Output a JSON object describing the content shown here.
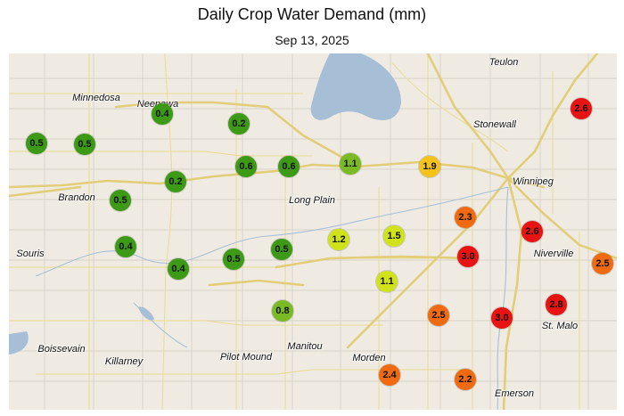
{
  "title": "Daily Crop Water Demand (mm)",
  "date": "Sep 13, 2025",
  "colors": {
    "land": "#efebe3",
    "water": "#a7bfd6",
    "road": "#eadb8f",
    "highway": "#e6cf7a",
    "boundary": "#cfc8bb",
    "low": "#3c9a16",
    "low_mid": "#7aba24",
    "mid": "#cfe21a",
    "mid_high": "#f5c21a",
    "high": "#ef6a10",
    "very_high": "#e81313"
  },
  "towns": [
    {
      "name": "Teulon"
    },
    {
      "name": "Minnedosa"
    },
    {
      "name": "Neepawa"
    },
    {
      "name": "Stonewall"
    },
    {
      "name": "Winnipeg"
    },
    {
      "name": "Brandon"
    },
    {
      "name": "Long Plain"
    },
    {
      "name": "Souris"
    },
    {
      "name": "Niverville"
    },
    {
      "name": "St. Malo"
    },
    {
      "name": "Boissevain"
    },
    {
      "name": "Killarney"
    },
    {
      "name": "Pilot Mound"
    },
    {
      "name": "Manitou"
    },
    {
      "name": "Morden"
    },
    {
      "name": "Emerson"
    }
  ],
  "stations": [
    {
      "value": "2.6",
      "level": "very_high"
    },
    {
      "value": "0.4",
      "level": "low"
    },
    {
      "value": "0.2",
      "level": "low"
    },
    {
      "value": "0.5",
      "level": "low"
    },
    {
      "value": "0.5",
      "level": "low"
    },
    {
      "value": "0.6",
      "level": "low"
    },
    {
      "value": "0.6",
      "level": "low"
    },
    {
      "value": "1.1",
      "level": "low_mid"
    },
    {
      "value": "1.9",
      "level": "mid_high"
    },
    {
      "value": "0.2",
      "level": "low"
    },
    {
      "value": "0.5",
      "level": "low"
    },
    {
      "value": "2.3",
      "level": "high"
    },
    {
      "value": "2.6",
      "level": "very_high"
    },
    {
      "value": "1.2",
      "level": "mid"
    },
    {
      "value": "1.5",
      "level": "mid"
    },
    {
      "value": "0.4",
      "level": "low"
    },
    {
      "value": "0.5",
      "level": "low"
    },
    {
      "value": "0.5",
      "level": "low"
    },
    {
      "value": "3.0",
      "level": "very_high"
    },
    {
      "value": "0.4",
      "level": "low"
    },
    {
      "value": "2.5",
      "level": "high"
    },
    {
      "value": "1.1",
      "level": "mid"
    },
    {
      "value": "2.8",
      "level": "very_high"
    },
    {
      "value": "0.8",
      "level": "low_mid"
    },
    {
      "value": "2.5",
      "level": "high"
    },
    {
      "value": "3.0",
      "level": "very_high"
    },
    {
      "value": "2.4",
      "level": "high"
    },
    {
      "value": "2.2",
      "level": "high"
    }
  ]
}
